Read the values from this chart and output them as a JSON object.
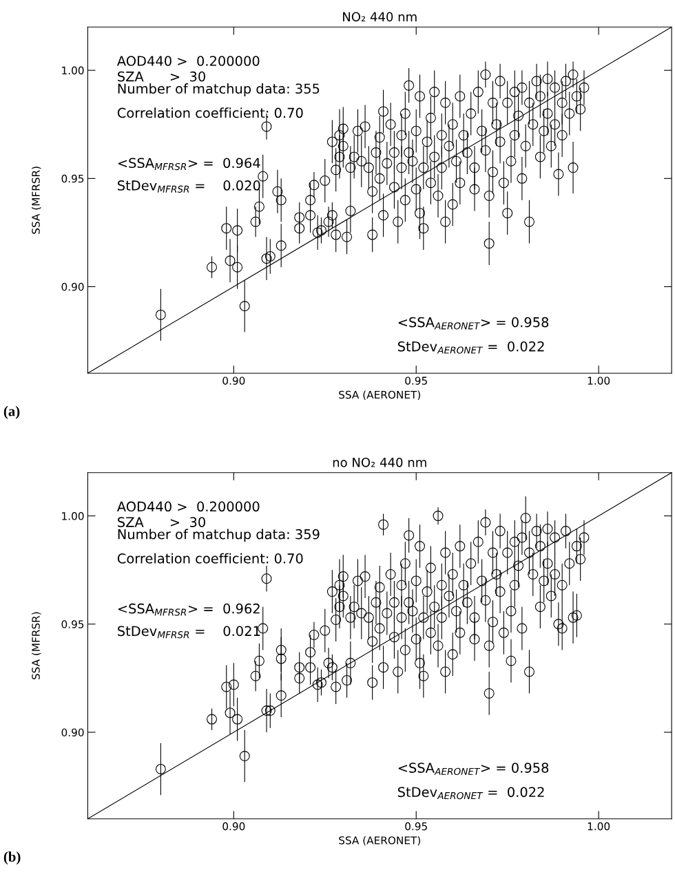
{
  "chart_data": [
    {
      "type": "scatter",
      "title": "NO₂ 440 nm",
      "xlabel": "SSA (AERONET)",
      "ylabel": "SSA (MFRSR)",
      "xlim": [
        0.86,
        1.02
      ],
      "ylim": [
        0.86,
        1.02
      ],
      "xticks": [
        {
          "value": 0.9,
          "label": "0.90"
        },
        {
          "value": 0.95,
          "label": "0.95"
        },
        {
          "value": 1.0,
          "label": "1.00"
        }
      ],
      "yticks": [
        {
          "value": 0.9,
          "label": "0.90"
        },
        {
          "value": 0.95,
          "label": "0.95"
        },
        {
          "value": 1.0,
          "label": "1.00"
        }
      ],
      "grid": false,
      "annotations": [
        "AOD440 >  0.200000",
        "SZA      >  30",
        "Number of matchup data: 355",
        "Correlation coefficient: 0.70",
        "<SSA$_{MFRSR}$> =  0.964",
        "StDev$_{MFRSR}$ =    0.020",
        "<SSA$_{AERONET}$> = 0.958",
        "StDev$_{AERONET}$ =  0.022",
        "(a)"
      ],
      "series": [
        {
          "marker": "circle",
          "color": "#000000",
          "x": [
            0.88,
            0.894,
            0.898,
            0.899,
            0.901,
            0.901,
            0.903,
            0.906,
            0.907,
            0.908,
            0.909,
            0.909,
            0.91,
            0.912,
            0.913,
            0.913,
            0.918,
            0.918,
            0.921,
            0.921,
            0.922,
            0.923,
            0.924,
            0.925,
            0.926,
            0.927,
            0.927,
            0.928,
            0.928,
            0.929,
            0.929,
            0.93,
            0.93,
            0.931,
            0.932,
            0.932,
            0.933,
            0.934,
            0.935,
            0.936,
            0.937,
            0.938,
            0.938,
            0.939,
            0.94,
            0.94,
            0.941,
            0.941,
            0.942,
            0.943,
            0.944,
            0.944,
            0.945,
            0.946,
            0.946,
            0.947,
            0.947,
            0.948,
            0.948,
            0.949,
            0.95,
            0.95,
            0.951,
            0.951,
            0.952,
            0.952,
            0.953,
            0.954,
            0.954,
            0.955,
            0.955,
            0.956,
            0.957,
            0.957,
            0.958,
            0.958,
            0.959,
            0.96,
            0.96,
            0.961,
            0.962,
            0.962,
            0.963,
            0.964,
            0.965,
            0.966,
            0.966,
            0.967,
            0.968,
            0.969,
            0.969,
            0.97,
            0.97,
            0.971,
            0.971,
            0.972,
            0.973,
            0.973,
            0.974,
            0.975,
            0.975,
            0.976,
            0.977,
            0.977,
            0.978,
            0.979,
            0.979,
            0.98,
            0.981,
            0.981,
            0.982,
            0.983,
            0.984,
            0.984,
            0.985,
            0.986,
            0.986,
            0.987,
            0.988,
            0.988,
            0.989,
            0.99,
            0.99,
            0.991,
            0.992,
            0.993,
            0.993,
            0.994,
            0.995,
            0.996
          ],
          "values": [
            0.887,
            0.909,
            0.927,
            0.912,
            0.926,
            0.909,
            0.891,
            0.93,
            0.937,
            0.951,
            0.974,
            0.913,
            0.914,
            0.944,
            0.94,
            0.919,
            0.932,
            0.927,
            0.94,
            0.933,
            0.947,
            0.925,
            0.926,
            0.949,
            0.93,
            0.933,
            0.967,
            0.924,
            0.954,
            0.97,
            0.96,
            0.973,
            0.965,
            0.923,
            0.955,
            0.935,
            0.96,
            0.972,
            0.958,
            0.974,
            0.955,
            0.944,
            0.924,
            0.962,
            0.95,
            0.969,
            0.981,
            0.933,
            0.957,
            0.975,
            0.946,
            0.962,
            0.93,
            0.97,
            0.955,
            0.98,
            0.94,
            0.993,
            0.962,
            0.958,
            0.945,
            0.972,
            0.934,
            0.988,
            0.955,
            0.927,
            0.967,
            0.948,
            0.978,
            0.96,
            0.99,
            0.942,
            0.97,
            0.955,
            0.93,
            0.985,
            0.965,
            0.938,
            0.975,
            0.958,
            0.988,
            0.948,
            0.97,
            0.962,
            0.98,
            0.955,
            0.945,
            0.99,
            0.972,
            0.998,
            0.963,
            0.942,
            0.92,
            0.985,
            0.953,
            0.975,
            0.995,
            0.967,
            0.948,
            0.985,
            0.934,
            0.958,
            0.99,
            0.97,
            0.979,
            0.95,
            0.992,
            0.965,
            0.93,
            0.985,
            0.975,
            0.995,
            0.96,
            0.988,
            0.972,
            0.98,
            0.996,
            0.965,
            0.992,
            0.975,
            0.952,
            0.985,
            0.97,
            0.995,
            0.98,
            0.955,
            0.998,
            0.988,
            0.982,
            0.992
          ],
          "errors": [
            0.012,
            0.005,
            0.01,
            0.01,
            0.01,
            0.01,
            0.012,
            0.007,
            0.008,
            0.01,
            0.006,
            0.01,
            0.008,
            0.01,
            0.01,
            0.01,
            0.007,
            0.007,
            0.008,
            0.008,
            0.006,
            0.008,
            0.006,
            0.01,
            0.007,
            0.006,
            0.01,
            0.008,
            0.01,
            0.012,
            0.01,
            0.01,
            0.01,
            0.008,
            0.01,
            0.01,
            0.01,
            0.01,
            0.012,
            0.01,
            0.01,
            0.01,
            0.008,
            0.01,
            0.01,
            0.01,
            0.01,
            0.01,
            0.01,
            0.01,
            0.01,
            0.01,
            0.01,
            0.01,
            0.01,
            0.01,
            0.01,
            0.008,
            0.01,
            0.01,
            0.01,
            0.01,
            0.012,
            0.01,
            0.01,
            0.01,
            0.01,
            0.01,
            0.01,
            0.01,
            0.01,
            0.01,
            0.01,
            0.01,
            0.01,
            0.01,
            0.01,
            0.01,
            0.01,
            0.01,
            0.01,
            0.01,
            0.01,
            0.01,
            0.01,
            0.01,
            0.01,
            0.01,
            0.01,
            0.006,
            0.01,
            0.01,
            0.01,
            0.01,
            0.01,
            0.01,
            0.008,
            0.01,
            0.01,
            0.01,
            0.01,
            0.01,
            0.01,
            0.01,
            0.01,
            0.01,
            0.008,
            0.01,
            0.01,
            0.01,
            0.01,
            0.008,
            0.01,
            0.01,
            0.01,
            0.01,
            0.008,
            0.01,
            0.008,
            0.01,
            0.01,
            0.01,
            0.01,
            0.008,
            0.01,
            0.012,
            0.006,
            0.008,
            0.01,
            0.008
          ]
        },
        {
          "type": "line",
          "color": "#000000",
          "x": [
            0.86,
            1.02
          ],
          "values": [
            0.86,
            1.02
          ]
        }
      ]
    },
    {
      "type": "scatter",
      "title": "no NO₂ 440 nm",
      "xlabel": "SSA (AERONET)",
      "ylabel": "SSA (MFRSR)",
      "xlim": [
        0.86,
        1.02
      ],
      "ylim": [
        0.86,
        1.02
      ],
      "xticks": [
        {
          "value": 0.9,
          "label": "0.90"
        },
        {
          "value": 0.95,
          "label": "0.95"
        },
        {
          "value": 1.0,
          "label": "1.00"
        }
      ],
      "yticks": [
        {
          "value": 0.9,
          "label": "0.90"
        },
        {
          "value": 0.95,
          "label": "0.95"
        },
        {
          "value": 1.0,
          "label": "1.00"
        }
      ],
      "grid": false,
      "annotations": [
        "AOD440 >  0.200000",
        "SZA      >  30",
        "Number of matchup data: 359",
        "Correlation coefficient: 0.70",
        "<SSA$_{MFRSR}$> =  0.962",
        "StDev$_{MFRSR}$ =    0.021",
        "<SSA$_{AERONET}$> = 0.958",
        "StDev$_{AERONET}$ =  0.022",
        "(b)"
      ],
      "series": [
        {
          "marker": "circle",
          "color": "#000000",
          "x": [
            0.88,
            0.894,
            0.898,
            0.899,
            0.9,
            0.901,
            0.903,
            0.906,
            0.907,
            0.908,
            0.909,
            0.909,
            0.91,
            0.913,
            0.913,
            0.913,
            0.918,
            0.918,
            0.921,
            0.921,
            0.922,
            0.923,
            0.924,
            0.925,
            0.926,
            0.927,
            0.927,
            0.928,
            0.928,
            0.929,
            0.929,
            0.93,
            0.93,
            0.931,
            0.932,
            0.932,
            0.933,
            0.934,
            0.935,
            0.936,
            0.937,
            0.938,
            0.938,
            0.939,
            0.94,
            0.94,
            0.941,
            0.941,
            0.942,
            0.943,
            0.944,
            0.944,
            0.945,
            0.946,
            0.946,
            0.947,
            0.947,
            0.948,
            0.948,
            0.949,
            0.95,
            0.95,
            0.951,
            0.951,
            0.952,
            0.952,
            0.953,
            0.954,
            0.954,
            0.955,
            0.956,
            0.956,
            0.957,
            0.957,
            0.958,
            0.958,
            0.959,
            0.96,
            0.96,
            0.961,
            0.962,
            0.962,
            0.963,
            0.964,
            0.965,
            0.966,
            0.966,
            0.967,
            0.968,
            0.969,
            0.969,
            0.97,
            0.97,
            0.971,
            0.971,
            0.972,
            0.973,
            0.973,
            0.974,
            0.975,
            0.976,
            0.976,
            0.977,
            0.977,
            0.978,
            0.979,
            0.979,
            0.98,
            0.981,
            0.981,
            0.982,
            0.983,
            0.984,
            0.984,
            0.985,
            0.986,
            0.986,
            0.987,
            0.988,
            0.988,
            0.989,
            0.99,
            0.99,
            0.991,
            0.992,
            0.993,
            0.994,
            0.994,
            0.995,
            0.996
          ],
          "values": [
            0.883,
            0.906,
            0.921,
            0.909,
            0.922,
            0.906,
            0.889,
            0.926,
            0.933,
            0.948,
            0.971,
            0.91,
            0.91,
            0.938,
            0.934,
            0.917,
            0.93,
            0.925,
            0.937,
            0.93,
            0.945,
            0.922,
            0.923,
            0.947,
            0.932,
            0.93,
            0.965,
            0.921,
            0.952,
            0.968,
            0.958,
            0.972,
            0.963,
            0.924,
            0.953,
            0.932,
            0.958,
            0.97,
            0.955,
            0.972,
            0.953,
            0.942,
            0.923,
            0.96,
            0.948,
            0.967,
            0.996,
            0.93,
            0.955,
            0.973,
            0.944,
            0.96,
            0.928,
            0.968,
            0.953,
            0.978,
            0.938,
            0.991,
            0.96,
            0.956,
            0.943,
            0.97,
            0.932,
            0.986,
            0.953,
            0.926,
            0.965,
            0.946,
            0.976,
            0.958,
            1.0,
            0.94,
            0.968,
            0.953,
            0.928,
            0.983,
            0.963,
            0.936,
            0.973,
            0.956,
            0.986,
            0.946,
            0.968,
            0.96,
            0.978,
            0.953,
            0.943,
            0.988,
            0.97,
            0.997,
            0.961,
            0.94,
            0.918,
            0.983,
            0.951,
            0.973,
            0.993,
            0.965,
            0.946,
            0.983,
            0.933,
            0.956,
            0.988,
            0.968,
            0.977,
            0.948,
            0.99,
            0.999,
            0.928,
            0.983,
            0.973,
            0.993,
            0.958,
            0.986,
            0.97,
            0.978,
            0.994,
            0.963,
            0.99,
            0.973,
            0.95,
            0.948,
            0.968,
            0.993,
            0.978,
            0.953,
            0.954,
            0.986,
            0.98,
            0.99
          ],
          "errors": [
            0.012,
            0.005,
            0.01,
            0.01,
            0.01,
            0.01,
            0.012,
            0.007,
            0.008,
            0.01,
            0.006,
            0.01,
            0.008,
            0.01,
            0.01,
            0.01,
            0.007,
            0.007,
            0.008,
            0.008,
            0.006,
            0.008,
            0.006,
            0.01,
            0.007,
            0.006,
            0.01,
            0.008,
            0.01,
            0.012,
            0.01,
            0.01,
            0.01,
            0.008,
            0.01,
            0.01,
            0.01,
            0.01,
            0.012,
            0.01,
            0.01,
            0.01,
            0.008,
            0.01,
            0.01,
            0.01,
            0.005,
            0.01,
            0.01,
            0.01,
            0.01,
            0.01,
            0.01,
            0.01,
            0.01,
            0.01,
            0.01,
            0.008,
            0.01,
            0.01,
            0.01,
            0.01,
            0.012,
            0.01,
            0.01,
            0.01,
            0.01,
            0.01,
            0.01,
            0.01,
            0.004,
            0.01,
            0.01,
            0.01,
            0.01,
            0.01,
            0.01,
            0.01,
            0.01,
            0.01,
            0.01,
            0.01,
            0.01,
            0.01,
            0.01,
            0.01,
            0.01,
            0.01,
            0.01,
            0.006,
            0.01,
            0.01,
            0.01,
            0.01,
            0.01,
            0.01,
            0.008,
            0.01,
            0.01,
            0.01,
            0.01,
            0.01,
            0.01,
            0.01,
            0.01,
            0.01,
            0.008,
            0.01,
            0.01,
            0.01,
            0.01,
            0.008,
            0.01,
            0.01,
            0.01,
            0.01,
            0.008,
            0.01,
            0.008,
            0.01,
            0.01,
            0.01,
            0.01,
            0.008,
            0.01,
            0.012,
            0.01,
            0.008,
            0.01,
            0.008
          ]
        },
        {
          "type": "line",
          "color": "#000000",
          "x": [
            0.86,
            1.02
          ],
          "values": [
            0.86,
            1.02
          ]
        }
      ]
    }
  ]
}
